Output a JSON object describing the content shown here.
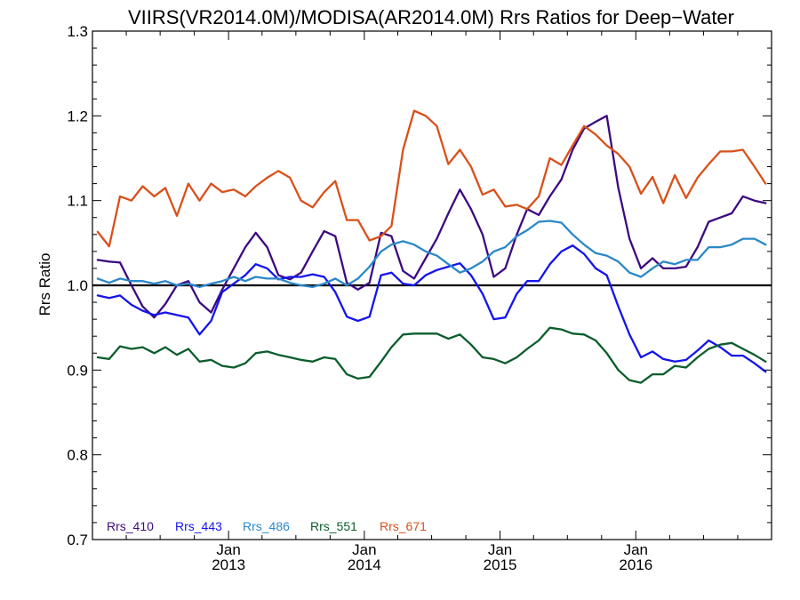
{
  "chart_data": {
    "type": "line",
    "title": "VIIRS(VR2014.0M)/MODISA(AR2014.0M)  Rrs Ratios for Deep−Water",
    "xlabel": "",
    "ylabel": "Rrs Ratio",
    "xlim": [
      "2012-01-01",
      "2016-12-31"
    ],
    "ylim": [
      0.7,
      1.3
    ],
    "y_ticks": [
      "0.7",
      "0.8",
      "0.9",
      "1.0",
      "1.1",
      "1.2",
      "1.3"
    ],
    "x_ticks": [
      {
        "date": "2013-01-01",
        "line1": "Jan",
        "line2": "2013"
      },
      {
        "date": "2014-01-01",
        "line1": "Jan",
        "line2": "2014"
      },
      {
        "date": "2015-01-01",
        "line1": "Jan",
        "line2": "2015"
      },
      {
        "date": "2016-01-01",
        "line1": "Jan",
        "line2": "2016"
      }
    ],
    "reference_line": 1.0,
    "grid": false,
    "legend_position": "bottom-left",
    "x_start": "2012-01",
    "x_step": "1 month",
    "series": [
      {
        "name": "Rrs_410",
        "color": "#3d0a80",
        "values": [
          1.03,
          1.028,
          1.027,
          1.0,
          0.975,
          0.962,
          0.978,
          1.0,
          1.005,
          0.98,
          0.968,
          0.995,
          1.02,
          1.045,
          1.062,
          1.045,
          1.012,
          1.007,
          1.015,
          1.04,
          1.064,
          1.058,
          1.003,
          0.995,
          1.003,
          1.062,
          1.058,
          1.017,
          1.008,
          1.032,
          1.055,
          1.085,
          1.113,
          1.09,
          1.06,
          1.01,
          1.02,
          1.06,
          1.09,
          1.083,
          1.105,
          1.125,
          1.16,
          1.185,
          1.193,
          1.2,
          1.115,
          1.055,
          1.02,
          1.032,
          1.02,
          1.02,
          1.022,
          1.045,
          1.075,
          1.08,
          1.085,
          1.105,
          1.1,
          1.097
        ]
      },
      {
        "name": "Rrs_443",
        "color": "#1414ee",
        "values": [
          0.988,
          0.985,
          0.988,
          0.977,
          0.97,
          0.965,
          0.968,
          0.965,
          0.962,
          0.942,
          0.958,
          0.992,
          1.002,
          1.012,
          1.025,
          1.02,
          1.007,
          1.01,
          1.01,
          1.013,
          1.01,
          0.992,
          0.963,
          0.958,
          0.963,
          1.012,
          1.015,
          1.002,
          1.0,
          1.012,
          1.018,
          1.022,
          1.026,
          1.012,
          0.99,
          0.96,
          0.962,
          0.99,
          1.005,
          1.005,
          1.025,
          1.04,
          1.047,
          1.037,
          1.02,
          1.012,
          0.975,
          0.942,
          0.915,
          0.922,
          0.913,
          0.91,
          0.912,
          0.923,
          0.935,
          0.927,
          0.917,
          0.917,
          0.908,
          0.898
        ]
      },
      {
        "name": "Rrs_486",
        "color": "#2a88c8",
        "values": [
          1.008,
          1.003,
          1.008,
          1.005,
          1.005,
          1.002,
          1.005,
          1.0,
          1.002,
          0.998,
          1.002,
          1.005,
          1.01,
          1.005,
          1.01,
          1.008,
          1.008,
          1.003,
          1.0,
          0.998,
          1.002,
          1.008,
          1.0,
          1.008,
          1.022,
          1.04,
          1.048,
          1.052,
          1.048,
          1.04,
          1.035,
          1.025,
          1.015,
          1.02,
          1.028,
          1.04,
          1.045,
          1.058,
          1.065,
          1.075,
          1.076,
          1.074,
          1.06,
          1.048,
          1.038,
          1.035,
          1.028,
          1.015,
          1.01,
          1.02,
          1.028,
          1.025,
          1.03,
          1.03,
          1.045,
          1.045,
          1.048,
          1.055,
          1.055,
          1.048
        ]
      },
      {
        "name": "Rrs_551",
        "color": "#0b5d2b",
        "values": [
          0.915,
          0.913,
          0.928,
          0.925,
          0.927,
          0.92,
          0.927,
          0.918,
          0.925,
          0.91,
          0.912,
          0.905,
          0.903,
          0.908,
          0.92,
          0.922,
          0.918,
          0.915,
          0.912,
          0.91,
          0.915,
          0.913,
          0.895,
          0.89,
          0.892,
          0.91,
          0.927,
          0.942,
          0.943,
          0.943,
          0.943,
          0.937,
          0.942,
          0.93,
          0.915,
          0.913,
          0.908,
          0.915,
          0.925,
          0.935,
          0.95,
          0.948,
          0.943,
          0.942,
          0.935,
          0.92,
          0.9,
          0.888,
          0.885,
          0.895,
          0.895,
          0.905,
          0.903,
          0.915,
          0.925,
          0.93,
          0.932,
          0.925,
          0.918,
          0.91
        ]
      },
      {
        "name": "Rrs_671",
        "color": "#d9501a",
        "values": [
          1.063,
          1.046,
          1.105,
          1.1,
          1.117,
          1.105,
          1.115,
          1.082,
          1.12,
          1.1,
          1.12,
          1.11,
          1.113,
          1.105,
          1.117,
          1.127,
          1.135,
          1.127,
          1.1,
          1.092,
          1.11,
          1.123,
          1.077,
          1.077,
          1.053,
          1.058,
          1.07,
          1.16,
          1.206,
          1.2,
          1.188,
          1.143,
          1.16,
          1.14,
          1.107,
          1.113,
          1.093,
          1.095,
          1.09,
          1.105,
          1.15,
          1.142,
          1.165,
          1.188,
          1.178,
          1.165,
          1.155,
          1.14,
          1.108,
          1.128,
          1.097,
          1.13,
          1.103,
          1.127,
          1.143,
          1.158,
          1.158,
          1.16,
          1.14,
          1.12
        ]
      }
    ]
  }
}
